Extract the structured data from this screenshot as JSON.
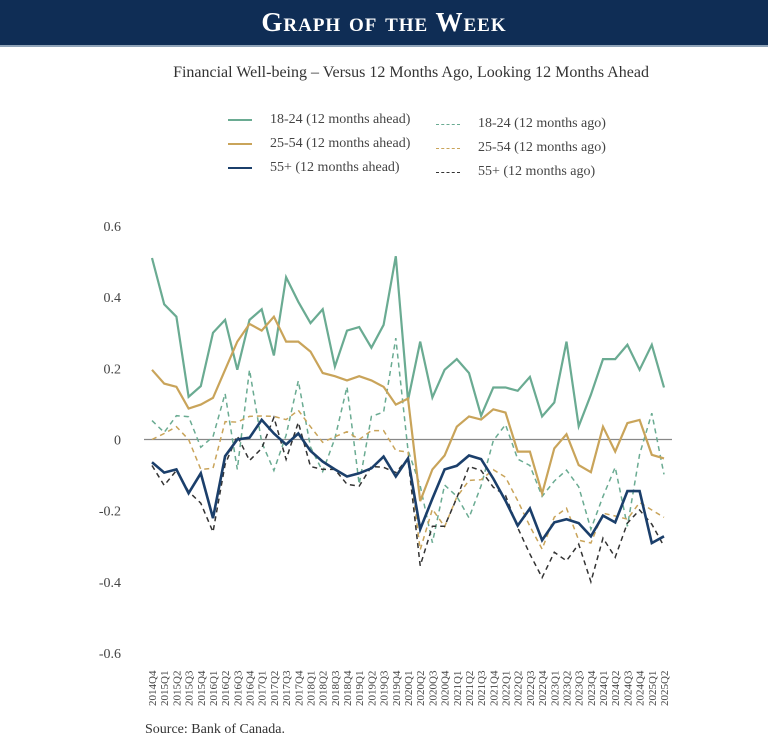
{
  "banner": {
    "title": "Graph of the Week"
  },
  "source": "Source: Bank of Canada.",
  "colors": {
    "banner": "#0f2d55",
    "green": "#6aab92",
    "gold": "#c9a45a",
    "navy": "#1b3f6b",
    "black": "#333333",
    "zero_line": "#888888"
  },
  "chart_data": {
    "type": "line",
    "title": "Financial Well-being – Versus 12 Months Ago, Looking 12 Months Ahead",
    "xlabel": "",
    "ylabel": "",
    "ylim": [
      -0.6,
      0.6
    ],
    "yticks": [
      0.6,
      0.4,
      0.2,
      0,
      -0.2,
      -0.4,
      -0.6
    ],
    "ytick_labels": [
      "0.6",
      "0.4",
      "0.2",
      "0",
      "-0.2",
      "-0.4",
      "-0.6"
    ],
    "grid": false,
    "zero_line": true,
    "legend_position": "top-center",
    "x": [
      "2014Q4",
      "2015Q1",
      "2015Q2",
      "2015Q3",
      "2015Q4",
      "2016Q1",
      "2016Q2",
      "2016Q3",
      "2016Q4",
      "2017Q1",
      "2017Q2",
      "2017Q3",
      "2017Q4",
      "2018Q1",
      "2018Q2",
      "2018Q3",
      "2018Q4",
      "2019Q1",
      "2019Q2",
      "2019Q3",
      "2019Q4",
      "2020Q1",
      "2020Q2",
      "2020Q3",
      "2020Q4",
      "2021Q1",
      "2021Q2",
      "2021Q3",
      "2021Q4",
      "2022Q1",
      "2022Q2",
      "2022Q3",
      "2022Q4",
      "2023Q1",
      "2023Q2",
      "2023Q3",
      "2023Q4",
      "2024Q1",
      "2024Q2",
      "2024Q3",
      "2024Q4",
      "2025Q1",
      "2025Q2"
    ],
    "series": [
      {
        "name": "18-24 (12 months ahead)",
        "color_key": "green",
        "style": "solid",
        "values": [
          0.51,
          0.38,
          0.345,
          0.12,
          0.15,
          0.3,
          0.336,
          0.196,
          0.336,
          0.366,
          0.236,
          0.456,
          0.387,
          0.327,
          0.366,
          0.205,
          0.306,
          0.316,
          0.258,
          0.322,
          0.515,
          0.11,
          0.275,
          0.118,
          0.196,
          0.226,
          0.187,
          0.067,
          0.146,
          0.146,
          0.137,
          0.176,
          0.065,
          0.104,
          0.275,
          0.037,
          0.126,
          0.226,
          0.226,
          0.266,
          0.196,
          0.266,
          0.146
        ]
      },
      {
        "name": "25-54 (12 months ahead)",
        "color_key": "gold",
        "style": "solid",
        "values": [
          0.196,
          0.157,
          0.148,
          0.087,
          0.098,
          0.117,
          0.196,
          0.275,
          0.325,
          0.306,
          0.345,
          0.275,
          0.275,
          0.247,
          0.187,
          0.178,
          0.166,
          0.178,
          0.166,
          0.148,
          0.098,
          0.115,
          -0.173,
          -0.084,
          -0.045,
          0.036,
          0.065,
          0.056,
          0.085,
          0.076,
          -0.034,
          -0.034,
          -0.152,
          -0.025,
          0.015,
          -0.072,
          -0.092,
          0.036,
          -0.034,
          0.046,
          0.055,
          -0.043,
          -0.053
        ]
      },
      {
        "name": "55+ (12 months ahead)",
        "color_key": "navy",
        "style": "solid",
        "values": [
          -0.064,
          -0.093,
          -0.084,
          -0.151,
          -0.095,
          -0.221,
          -0.047,
          0.0,
          0.005,
          0.055,
          0.017,
          -0.014,
          0.017,
          -0.032,
          -0.062,
          -0.084,
          -0.104,
          -0.095,
          -0.081,
          -0.048,
          -0.104,
          -0.053,
          -0.252,
          -0.166,
          -0.084,
          -0.074,
          -0.045,
          -0.055,
          -0.11,
          -0.172,
          -0.242,
          -0.194,
          -0.283,
          -0.233,
          -0.224,
          -0.235,
          -0.272,
          -0.214,
          -0.233,
          -0.145,
          -0.145,
          -0.291,
          -0.272
        ]
      },
      {
        "name": "18-24 (12 months ago)",
        "color_key": "green",
        "style": "dashed",
        "values": [
          0.053,
          0.02,
          0.067,
          0.064,
          -0.022,
          0.008,
          0.129,
          -0.084,
          0.196,
          -0.008,
          -0.087,
          0.012,
          0.165,
          -0.021,
          -0.09,
          0.003,
          0.148,
          -0.126,
          0.065,
          0.077,
          0.285,
          -0.03,
          -0.13,
          -0.29,
          -0.128,
          -0.16,
          -0.22,
          -0.13,
          -0.003,
          0.042,
          -0.055,
          -0.073,
          -0.16,
          -0.117,
          -0.086,
          -0.133,
          -0.252,
          -0.16,
          -0.078,
          -0.244,
          -0.042,
          0.074,
          -0.098
        ]
      },
      {
        "name": "25-54 (12 months ago)",
        "color_key": "gold",
        "style": "dashed",
        "values": [
          0.0,
          0.017,
          0.036,
          0.0,
          -0.084,
          -0.081,
          0.05,
          0.049,
          0.065,
          0.066,
          0.065,
          0.056,
          0.082,
          0.036,
          -0.008,
          0.008,
          0.022,
          0.0,
          0.025,
          0.025,
          -0.031,
          -0.035,
          -0.31,
          -0.196,
          -0.245,
          -0.162,
          -0.115,
          -0.113,
          -0.085,
          -0.106,
          -0.172,
          -0.244,
          -0.308,
          -0.218,
          -0.193,
          -0.283,
          -0.291,
          -0.207,
          -0.215,
          -0.224,
          -0.177,
          -0.198,
          -0.219
        ]
      },
      {
        "name": "55+ (12 months ago)",
        "color_key": "black",
        "style": "dashed",
        "values": [
          -0.073,
          -0.129,
          -0.087,
          -0.146,
          -0.179,
          -0.26,
          -0.07,
          0.01,
          -0.059,
          -0.025,
          0.062,
          -0.056,
          0.048,
          -0.076,
          -0.084,
          -0.084,
          -0.126,
          -0.131,
          -0.076,
          -0.078,
          -0.093,
          -0.053,
          -0.355,
          -0.244,
          -0.244,
          -0.164,
          -0.076,
          -0.087,
          -0.134,
          -0.157,
          -0.248,
          -0.322,
          -0.388,
          -0.317,
          -0.341,
          -0.294,
          -0.4,
          -0.277,
          -0.331,
          -0.235,
          -0.198,
          -0.238,
          -0.3
        ]
      }
    ]
  }
}
